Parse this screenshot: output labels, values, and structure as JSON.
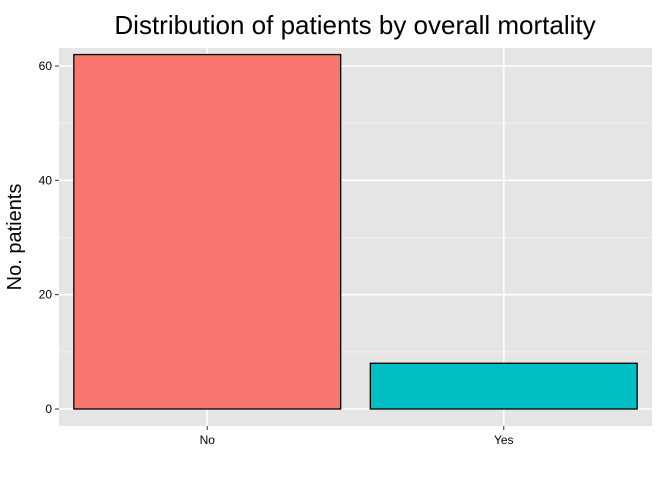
{
  "chart_data": {
    "type": "bar",
    "title": "Distribution of patients by overall mortality",
    "xlabel": "",
    "ylabel": "No. patients",
    "categories": [
      "No",
      "Yes"
    ],
    "values": [
      62,
      8
    ],
    "ylim": [
      0,
      65
    ],
    "yticks": [
      0,
      20,
      40,
      60
    ],
    "ytick_labels": [
      "0",
      "20",
      "40",
      "60"
    ],
    "colors": [
      "#F8766D",
      "#00BFC4"
    ],
    "panel_color": "#E5E5E5",
    "grid": true,
    "legend": "none"
  }
}
